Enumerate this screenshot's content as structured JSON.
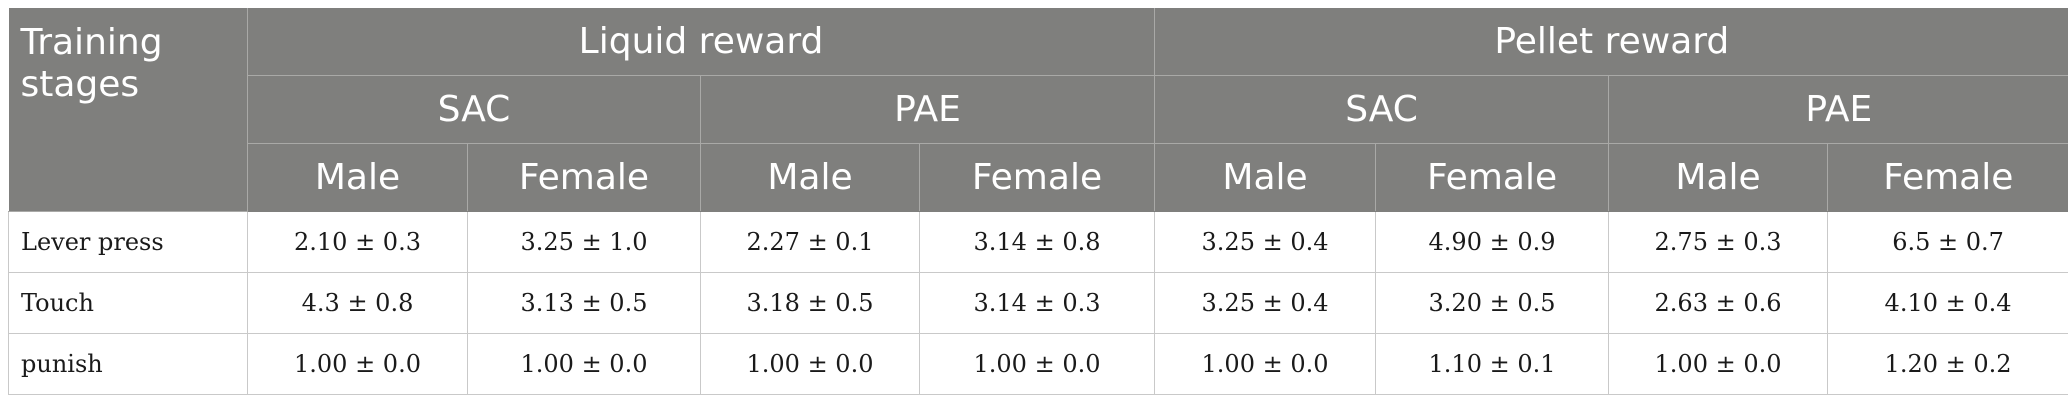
{
  "table": {
    "stage_header_line1": "Training",
    "stage_header_line2": "stages",
    "reward_groups": [
      "Liquid reward",
      "Pellet reward"
    ],
    "treatments": [
      "SAC",
      "PAE",
      "SAC",
      "PAE"
    ],
    "sexes": [
      "Male",
      "Female",
      "Male",
      "Female",
      "Male",
      "Female",
      "Male",
      "Female"
    ],
    "rows": [
      {
        "stage": "Lever press",
        "values": [
          "2.10 ± 0.3",
          "3.25 ± 1.0",
          "2.27 ± 0.1",
          "3.14 ± 0.8",
          "3.25 ± 0.4",
          "4.90 ± 0.9",
          "2.75 ± 0.3",
          "6.5 ± 0.7"
        ]
      },
      {
        "stage": "Touch",
        "values": [
          "4.3 ± 0.8",
          "3.13 ± 0.5",
          "3.18 ± 0.5",
          "3.14 ± 0.3",
          "3.25 ± 0.4",
          "3.20 ± 0.5",
          "2.63 ± 0.6",
          "4.10 ± 0.4"
        ]
      },
      {
        "stage": "punish",
        "values": [
          "1.00 ± 0.0",
          "1.00 ± 0.0",
          "1.00 ± 0.0",
          "1.00 ± 0.0",
          "1.00 ± 0.0",
          "1.10 ± 0.1",
          "1.00 ± 0.0",
          "1.20 ± 0.2"
        ]
      }
    ]
  }
}
